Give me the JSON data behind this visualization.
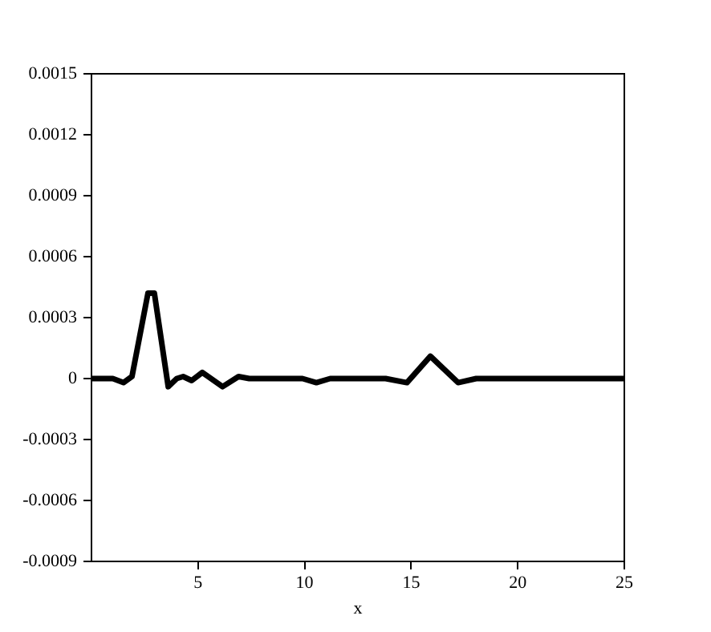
{
  "chart_data": {
    "type": "line",
    "xlabel": "x",
    "x": [
      0,
      1.0,
      1.5,
      1.9,
      2.65,
      2.95,
      3.6,
      4.0,
      4.3,
      4.7,
      5.2,
      6.15,
      6.9,
      7.4,
      9.9,
      10.55,
      11.2,
      12.7,
      13.8,
      14.8,
      15.9,
      17.2,
      18.05,
      25
    ],
    "series": [
      {
        "color": "#000000",
        "values": [
          0,
          0,
          -2e-05,
          1e-05,
          0.00042,
          0.00042,
          -4e-05,
          0,
          1e-05,
          -1e-05,
          3e-05,
          -4e-05,
          1e-05,
          0,
          0,
          -2e-05,
          0,
          0,
          0,
          -2e-05,
          0.00011,
          -2e-05,
          0,
          0
        ]
      }
    ],
    "xlim": [
      0,
      25
    ],
    "xticks": [
      5,
      10,
      15,
      20,
      25
    ],
    "ylim": [
      -0.0009,
      0.0015
    ],
    "yticks": [
      -0.0009,
      -0.0006,
      -0.0003,
      0,
      0.0003,
      0.0006,
      0.0009,
      0.0012,
      0.0015
    ],
    "grid": false,
    "legend": false,
    "marker": "none",
    "line_style": "solid"
  }
}
